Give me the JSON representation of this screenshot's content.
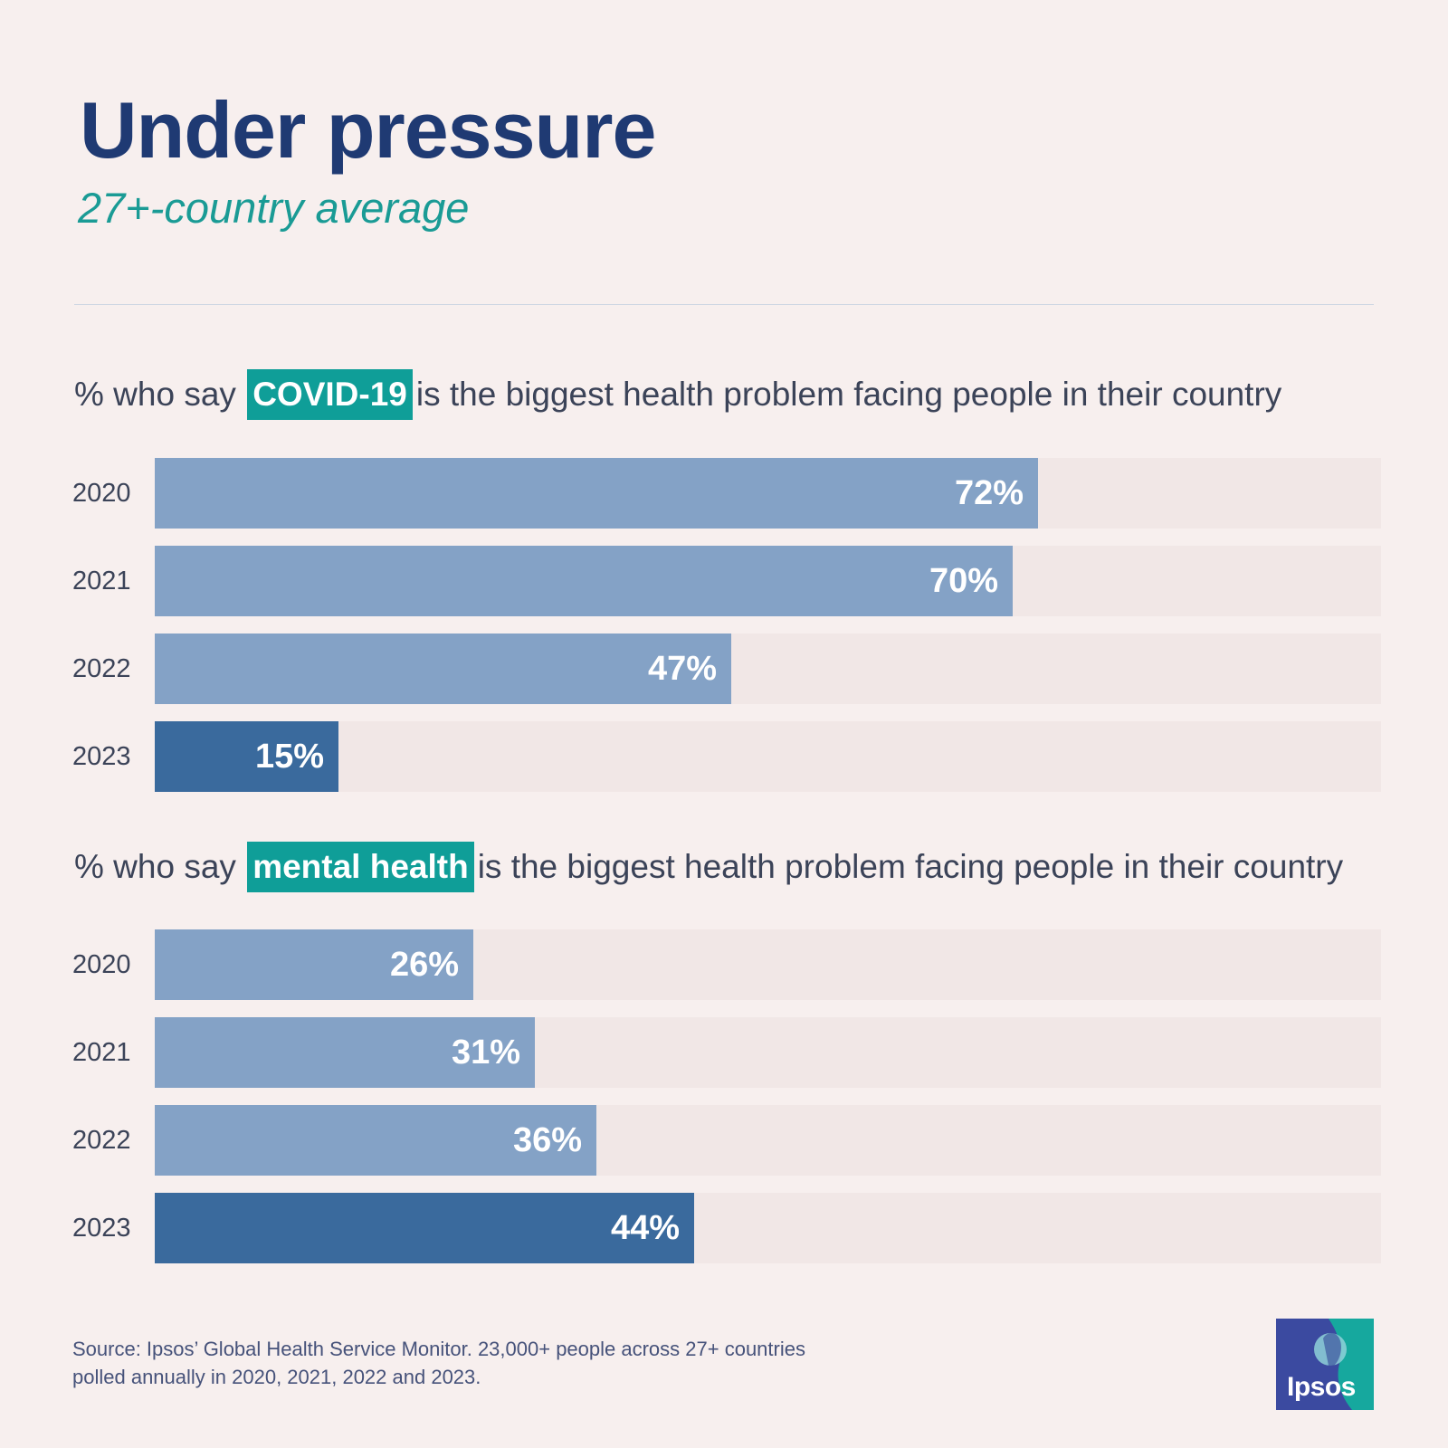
{
  "header": {
    "title": "Under pressure",
    "subtitle": "27+-country average"
  },
  "questions": [
    {
      "prefix": "% who say",
      "highlight": "COVID-19",
      "suffix": "is the biggest health problem facing people in their country"
    },
    {
      "prefix": "% who say",
      "highlight": "mental health",
      "suffix": "is the biggest health problem facing people in their country"
    }
  ],
  "colors": {
    "bar_light": "#84a2c6",
    "bar_dark": "#3a6a9d",
    "track": "#f1e7e6",
    "highlight": "#0f9e98"
  },
  "chart_data": [
    {
      "type": "bar",
      "orientation": "horizontal",
      "title": "% who say COVID-19 is the biggest health problem facing people in their country",
      "categories": [
        "2020",
        "2021",
        "2022",
        "2023"
      ],
      "values": [
        72,
        70,
        47,
        15
      ],
      "value_labels": [
        "72%",
        "70%",
        "47%",
        "15%"
      ],
      "xlim": [
        0,
        100
      ],
      "grid": false
    },
    {
      "type": "bar",
      "orientation": "horizontal",
      "title": "% who say mental health is the biggest health problem facing people in their country",
      "categories": [
        "2020",
        "2021",
        "2022",
        "2023"
      ],
      "values": [
        26,
        31,
        36,
        44
      ],
      "value_labels": [
        "26%",
        "31%",
        "36%",
        "44%"
      ],
      "xlim": [
        0,
        100
      ],
      "grid": false
    }
  ],
  "footer": {
    "source_line1": "Source: Ipsos’ Global Health Service Monitor. 23,000+ people across 27+ countries",
    "source_line2": "polled annually in 2020, 2021, 2022 and 2023.",
    "logo_text": "Ipsos"
  }
}
